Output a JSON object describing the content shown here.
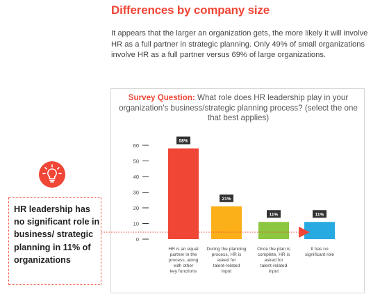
{
  "section": {
    "heading": "Differences by company size",
    "intro": "It appears that the larger an organization gets, the more likely it will involve HR as a full partner in strategic planning. Only 49% of small organizations involve HR as a full partner versus 69% of large organizations."
  },
  "survey": {
    "label": "Survey Question:",
    "question": "What role does HR leadership play in your organization's business/strategic planning process? (select the one that best applies)"
  },
  "callout": {
    "icon": "lightbulb-icon",
    "text": "HR leadership has no significant role in business/ strategic planning in 11% of organizations"
  },
  "chart_data": {
    "type": "bar",
    "title": "",
    "xlabel": "",
    "ylabel": "",
    "ylim": [
      0,
      60
    ],
    "yticks": [
      0,
      10,
      20,
      30,
      40,
      50,
      60
    ],
    "grid": false,
    "categories": [
      "HR is an equal partner in the process, along with other key functions",
      "During the planning process, HR is asked for talent-related input",
      "Once the plan is complete, HR is asked for talent-related input",
      "It has no significant role"
    ],
    "category_lines": [
      [
        "HR is an equal",
        "partner in the",
        "process, along",
        "with other",
        "key functions"
      ],
      [
        "During the planning",
        "process, HR is",
        "asked for",
        "talent-related",
        "input"
      ],
      [
        "Once the plan is",
        "complete, HR is",
        "asked for",
        "talent-related",
        "input"
      ],
      [
        "It has no",
        "significant role"
      ]
    ],
    "values": [
      58,
      21,
      11,
      11
    ],
    "value_labels": [
      "58%",
      "21%",
      "11%",
      "11%"
    ],
    "colors": [
      "#ef4636",
      "#fbb01a",
      "#8dc63f",
      "#27aae1"
    ],
    "tick_color": "#333333",
    "label_bg": "#333333",
    "connector_color": "#ef4636"
  }
}
